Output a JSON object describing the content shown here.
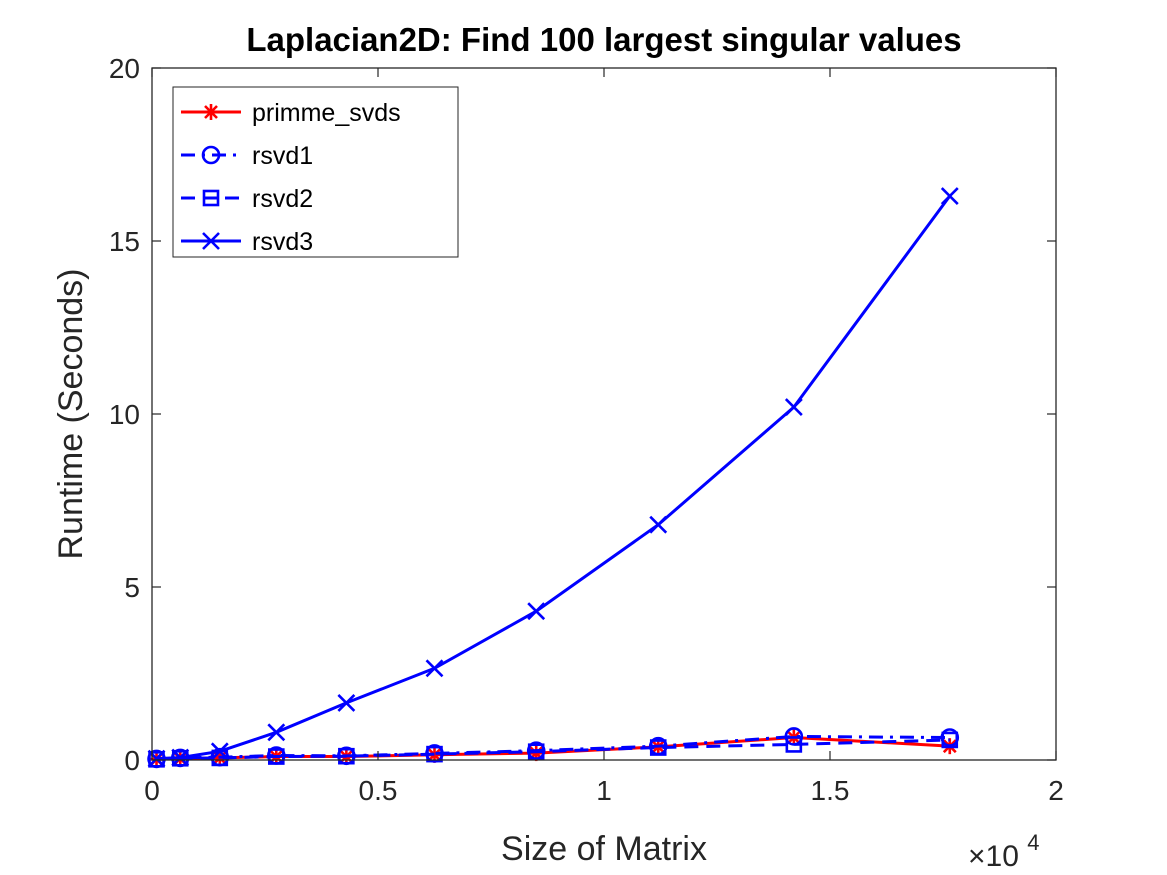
{
  "chart_data": {
    "type": "line",
    "title": "Laplacian2D: Find 100 largest singular values",
    "xlabel": "Size of Matrix",
    "ylabel": "Runtime (Seconds)",
    "x_exponent_label": "×10",
    "x_exponent": "4",
    "xlim": [
      0,
      20000
    ],
    "ylim": [
      0,
      20
    ],
    "xticks": [
      0,
      5000,
      10000,
      15000,
      20000
    ],
    "xtick_labels": [
      "0",
      "0.5",
      "1",
      "1.5",
      "2"
    ],
    "yticks": [
      0,
      5,
      10,
      15,
      20
    ],
    "ytick_labels": [
      "0",
      "5",
      "10",
      "15",
      "20"
    ],
    "grid": false,
    "legend_position": "top-left",
    "x": [
      100,
      625,
      1500,
      2750,
      4300,
      6250,
      8500,
      11200,
      14200,
      17650
    ],
    "series": [
      {
        "name": "primme_svds",
        "color": "#ff0000",
        "line": "solid",
        "marker": "asterisk",
        "values": [
          0.02,
          0.04,
          0.06,
          0.1,
          0.1,
          0.15,
          0.2,
          0.38,
          0.65,
          0.4
        ]
      },
      {
        "name": "rsvd1",
        "color": "#0000ff",
        "line": "dashdot",
        "marker": "circle",
        "values": [
          0.03,
          0.06,
          0.08,
          0.13,
          0.12,
          0.19,
          0.27,
          0.4,
          0.68,
          0.65
        ]
      },
      {
        "name": "rsvd2",
        "color": "#0000ff",
        "line": "dashed",
        "marker": "square",
        "values": [
          0.02,
          0.05,
          0.06,
          0.1,
          0.11,
          0.17,
          0.24,
          0.36,
          0.45,
          0.58
        ]
      },
      {
        "name": "rsvd3",
        "color": "#0000ff",
        "line": "solid",
        "marker": "x",
        "values": [
          0.04,
          0.07,
          0.25,
          0.8,
          1.65,
          2.65,
          4.3,
          6.8,
          10.2,
          16.3
        ]
      }
    ]
  }
}
